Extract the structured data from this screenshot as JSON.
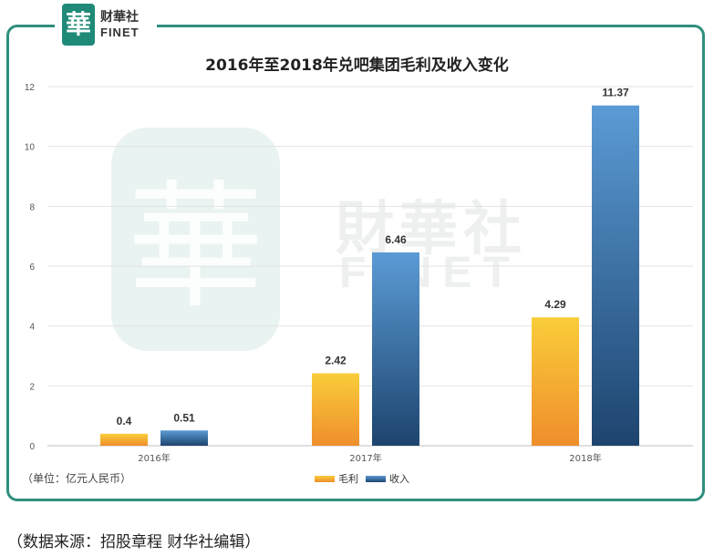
{
  "logo": {
    "seal_char": "華",
    "name_cn": "财華社",
    "name_en": "FINET"
  },
  "watermark": {
    "seal_char": "華",
    "name_cn": "財華社",
    "name_en": "FINET"
  },
  "unit_label": "（单位：亿元人民币）",
  "source_text": "（数据来源：招股章程    财华社编辑）",
  "colors": {
    "frame": "#2f8f7d",
    "gross_profit_top": "#f9cd3a",
    "gross_profit_bottom": "#ef8e2c",
    "revenue_top": "#5b9bd5",
    "revenue_bottom": "#1d446e"
  },
  "chart_data": {
    "type": "bar",
    "title": "2016年至2018年兑吧集团毛利及收入变化",
    "categories": [
      "2016年",
      "2017年",
      "2018年"
    ],
    "series": [
      {
        "name": "毛利",
        "values": [
          0.4,
          2.42,
          4.29
        ],
        "labels": [
          "0.4",
          "2.42",
          "4.29"
        ]
      },
      {
        "name": "收入",
        "values": [
          0.51,
          6.46,
          11.37
        ],
        "labels": [
          "0.51",
          "6.46",
          "11.37"
        ]
      }
    ],
    "ylim": [
      0,
      12
    ],
    "yticks": [
      0,
      2,
      4,
      6,
      8,
      10,
      12
    ],
    "grid": true,
    "legend_position": "bottom"
  }
}
